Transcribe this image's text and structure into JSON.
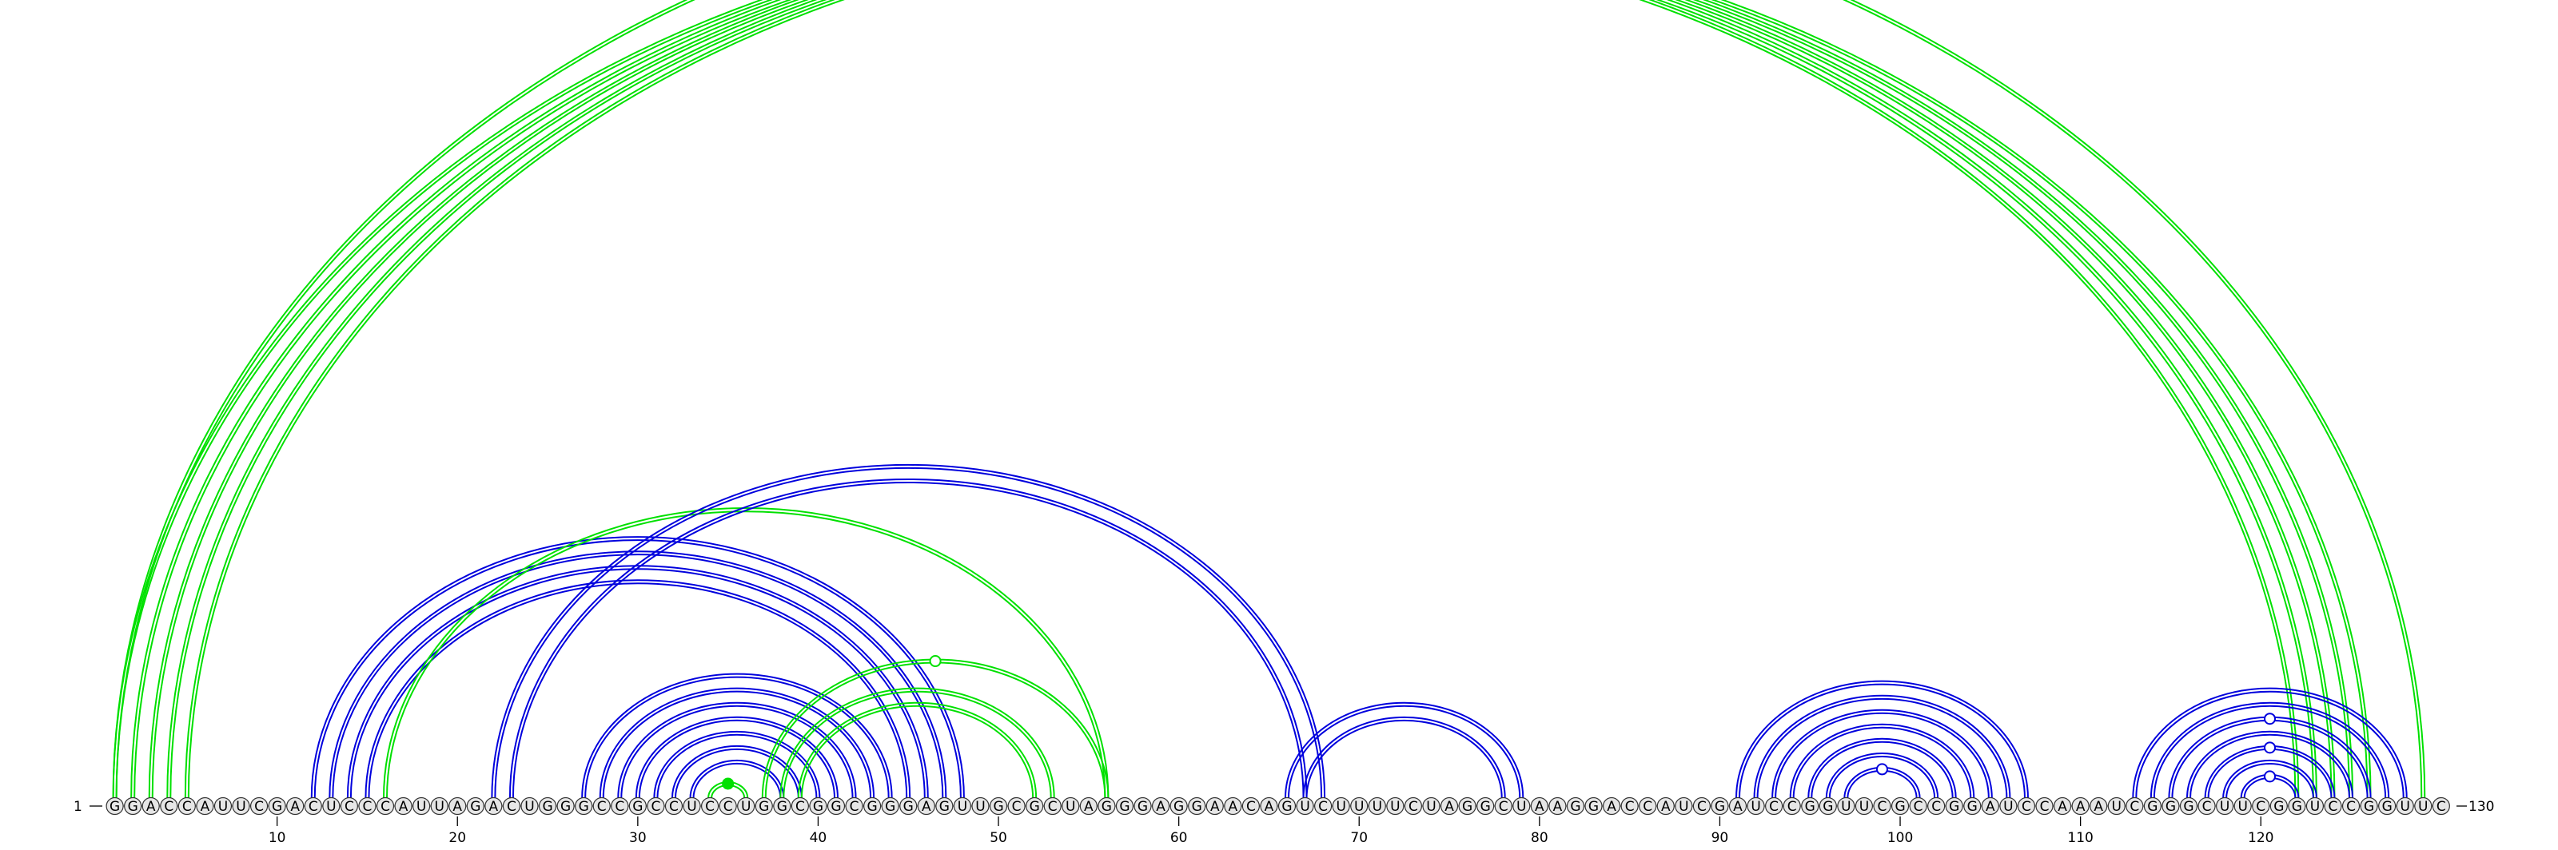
{
  "sequence": "GGACCAUUCGACUCCCAUUAGACUGGGCCGCCUCCUGGCGGCGGGAGUUGCGCUAGGGAGGAACAGUCUUUUCUAGGCUAAGGACCAUCGAUCCGGUUCGCCGGAUCCAAAUCGGGCUUCGGUCCGGUUC",
  "start_label": "1",
  "end_label": "130",
  "ticks": [
    10,
    20,
    30,
    40,
    50,
    60,
    70,
    80,
    90,
    100,
    110,
    120
  ],
  "colors": {
    "green": "#00e000",
    "blue": "#0000dd"
  },
  "arcs": [
    {
      "group": "green",
      "from": 1,
      "to": 122,
      "strands": 2
    },
    {
      "group": "green",
      "from": 2,
      "to": 123,
      "strands": 2
    },
    {
      "group": "green",
      "from": 3,
      "to": 124,
      "strands": 2
    },
    {
      "group": "green",
      "from": 4,
      "to": 125,
      "strands": 2
    },
    {
      "group": "green",
      "from": 5,
      "to": 126,
      "strands": 2
    },
    {
      "group": "green",
      "from": 1,
      "to": 129,
      "strands": 2,
      "marker": "open"
    },
    {
      "group": "blue",
      "from": 12,
      "to": 48,
      "strands": 2
    },
    {
      "group": "blue",
      "from": 13,
      "to": 47,
      "strands": 2
    },
    {
      "group": "blue",
      "from": 14,
      "to": 46,
      "strands": 2
    },
    {
      "group": "blue",
      "from": 15,
      "to": 45,
      "strands": 2
    },
    {
      "group": "green",
      "from": 16,
      "to": 56,
      "strands": 2
    },
    {
      "group": "blue",
      "from": 22,
      "to": 68,
      "strands": 2
    },
    {
      "group": "blue",
      "from": 23,
      "to": 67,
      "strands": 2
    },
    {
      "group": "blue",
      "from": 27,
      "to": 44,
      "strands": 2
    },
    {
      "group": "blue",
      "from": 28,
      "to": 43,
      "strands": 2
    },
    {
      "group": "blue",
      "from": 29,
      "to": 42,
      "strands": 2
    },
    {
      "group": "blue",
      "from": 30,
      "to": 41,
      "strands": 2
    },
    {
      "group": "blue",
      "from": 31,
      "to": 40,
      "strands": 2
    },
    {
      "group": "blue",
      "from": 32,
      "to": 39,
      "strands": 2
    },
    {
      "group": "blue",
      "from": 33,
      "to": 38,
      "strands": 2
    },
    {
      "group": "green",
      "from": 34,
      "to": 36,
      "strands": 2,
      "marker": "filled"
    },
    {
      "group": "green",
      "from": 37,
      "to": 56,
      "strands": 2,
      "marker": "open"
    },
    {
      "group": "green",
      "from": 38,
      "to": 53,
      "strands": 2
    },
    {
      "group": "green",
      "from": 39,
      "to": 52,
      "strands": 2
    },
    {
      "group": "blue",
      "from": 66,
      "to": 79,
      "strands": 2
    },
    {
      "group": "blue",
      "from": 67,
      "to": 78,
      "strands": 2
    },
    {
      "group": "blue",
      "from": 91,
      "to": 107,
      "strands": 2
    },
    {
      "group": "blue",
      "from": 92,
      "to": 106,
      "strands": 2
    },
    {
      "group": "blue",
      "from": 93,
      "to": 105,
      "strands": 2
    },
    {
      "group": "blue",
      "from": 94,
      "to": 104,
      "strands": 2
    },
    {
      "group": "blue",
      "from": 95,
      "to": 103,
      "strands": 2
    },
    {
      "group": "blue",
      "from": 96,
      "to": 102,
      "strands": 2
    },
    {
      "group": "blue",
      "from": 97,
      "to": 101,
      "strands": 2,
      "marker": "open"
    },
    {
      "group": "blue",
      "from": 113,
      "to": 128,
      "strands": 2
    },
    {
      "group": "blue",
      "from": 114,
      "to": 127,
      "strands": 2
    },
    {
      "group": "blue",
      "from": 115,
      "to": 126,
      "strands": 2,
      "marker": "open"
    },
    {
      "group": "blue",
      "from": 116,
      "to": 125,
      "strands": 2
    },
    {
      "group": "blue",
      "from": 117,
      "to": 124,
      "strands": 2,
      "marker": "open"
    },
    {
      "group": "blue",
      "from": 118,
      "to": 123,
      "strands": 2
    },
    {
      "group": "blue",
      "from": 119,
      "to": 122,
      "strands": 2,
      "marker": "open"
    }
  ]
}
